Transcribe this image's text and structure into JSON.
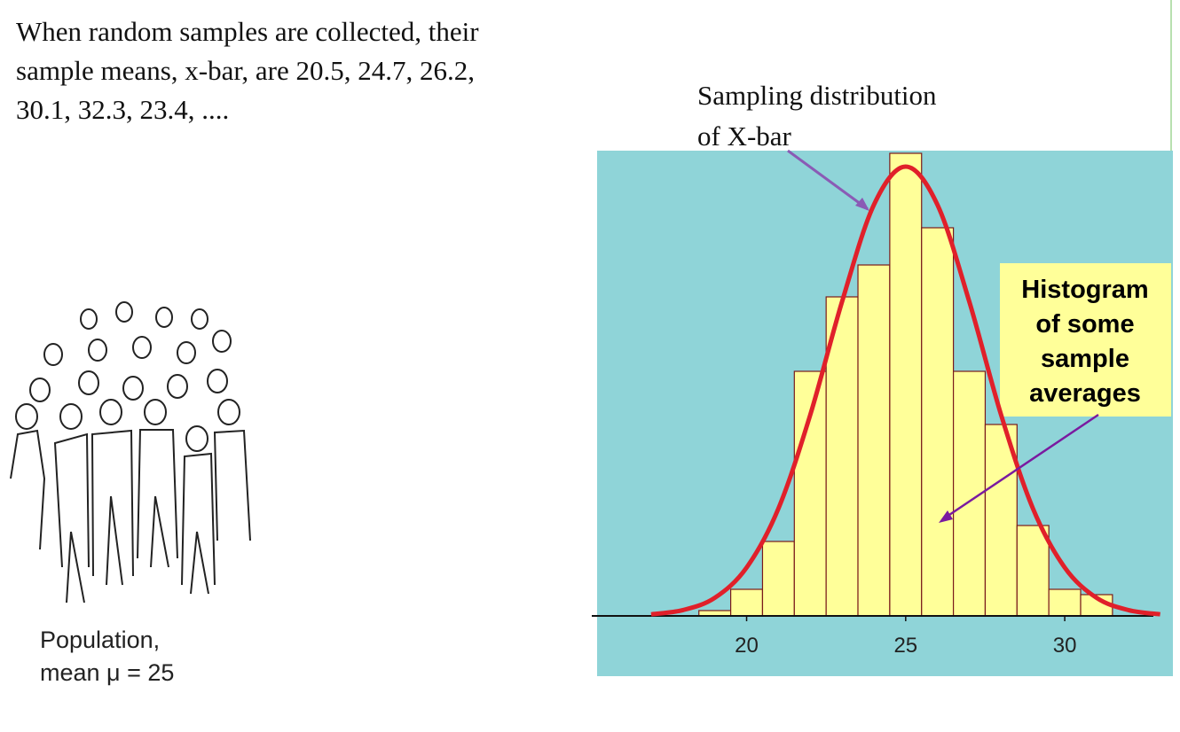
{
  "slide": {
    "intro_lines": [
      "When random samples are collected,  their",
      "sample means, x-bar, are 20.5, 24.7, 26.2,",
      "30.1, 32.3, 23.4, ...."
    ],
    "population_lines": [
      "Population,",
      "mean μ = 25"
    ]
  },
  "chart_data": {
    "type": "histogram",
    "bins": [
      18.5,
      19.5,
      20.5,
      21.5,
      22.5,
      23.5,
      24.5,
      25.5,
      26.5,
      27.5,
      28.5,
      29.5,
      30.5,
      31.5
    ],
    "values": [
      1,
      5,
      14,
      46,
      60,
      66,
      87,
      73,
      46,
      36,
      17,
      5,
      4
    ],
    "color": "#ffff99",
    "xlim": [
      15.3,
      33.4
    ],
    "xticks": [
      20,
      25,
      30
    ],
    "ylim": [
      0,
      88
    ],
    "overlay": {
      "type": "line",
      "color": "#e0202a",
      "x": [
        17,
        18,
        19,
        20,
        21,
        22,
        23,
        24,
        25,
        26,
        27,
        28,
        29,
        30,
        31,
        32,
        33
      ],
      "values": [
        0.3,
        1.1,
        3.4,
        9.1,
        20.2,
        37.8,
        59.1,
        77.3,
        84.5,
        77.3,
        59.1,
        37.8,
        20.2,
        9.1,
        3.4,
        1.1,
        0.3
      ]
    },
    "annotations": {
      "curve_label": [
        "Sampling distribution",
        "of X-bar"
      ],
      "histogram_label": [
        "Histogram",
        "of some",
        "sample",
        "averages"
      ]
    }
  }
}
